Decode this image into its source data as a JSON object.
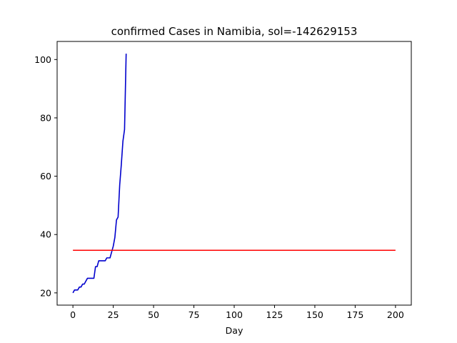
{
  "chart_data": {
    "type": "line",
    "title": "confirmed Cases in Namibia, sol=-142629153",
    "xlabel": "Day",
    "ylabel": "",
    "xlim": [
      -9.8,
      209.8
    ],
    "ylim": [
      15.8,
      106.2
    ],
    "xticks": [
      0,
      25,
      50,
      75,
      100,
      125,
      150,
      175,
      200
    ],
    "yticks": [
      20,
      40,
      60,
      80,
      100
    ],
    "grid": false,
    "legend": "none",
    "series": [
      {
        "color": "#0000cd",
        "points": [
          [
            0,
            20
          ],
          [
            1,
            21
          ],
          [
            2,
            21
          ],
          [
            3,
            21
          ],
          [
            4,
            22
          ],
          [
            5,
            22
          ],
          [
            6,
            23
          ],
          [
            7,
            23
          ],
          [
            8,
            24
          ],
          [
            9,
            25
          ],
          [
            10,
            25
          ],
          [
            11,
            25
          ],
          [
            12,
            25
          ],
          [
            13,
            25
          ],
          [
            14,
            29
          ],
          [
            15,
            29
          ],
          [
            16,
            31
          ],
          [
            17,
            31
          ],
          [
            18,
            31
          ],
          [
            19,
            31
          ],
          [
            20,
            31
          ],
          [
            21,
            32
          ],
          [
            22,
            32
          ],
          [
            23,
            32
          ],
          [
            24,
            34
          ],
          [
            25,
            36
          ],
          [
            26,
            39
          ],
          [
            27,
            45
          ],
          [
            28,
            46
          ],
          [
            29,
            57
          ],
          [
            30,
            64
          ],
          [
            31,
            72
          ],
          [
            32,
            76
          ],
          [
            33,
            102
          ]
        ]
      },
      {
        "color": "#ff0000",
        "points": [
          [
            0,
            34.6
          ],
          [
            200,
            34.6
          ]
        ]
      }
    ]
  }
}
